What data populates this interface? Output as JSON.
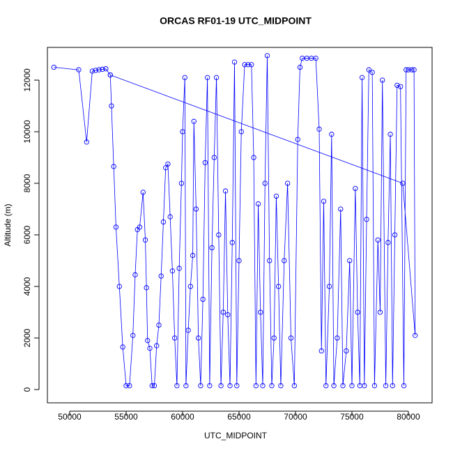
{
  "chart_data": {
    "type": "line",
    "title": "ORCAS RF01-19 UTC_MIDPOINT",
    "xlabel": "UTC_MIDPOINT",
    "ylabel": "Altitude (m)",
    "color": "#0000ff",
    "marker": "circle",
    "grid": false,
    "xlim": [
      48025,
      82100
    ],
    "ylim": [
      -514,
      13270
    ],
    "xticks": [
      50000,
      55000,
      60000,
      65000,
      70000,
      75000,
      80000
    ],
    "yticks": [
      0,
      2000,
      4000,
      6000,
      8000,
      10000,
      12000
    ],
    "x": [
      48600,
      50800,
      51500,
      52000,
      52300,
      52600,
      52900,
      53200,
      53600,
      53700,
      53900,
      54100,
      54400,
      54700,
      55000,
      55300,
      55600,
      55800,
      56000,
      56200,
      56500,
      56700,
      56800,
      56900,
      57100,
      57300,
      57500,
      57700,
      57900,
      58100,
      58300,
      58500,
      58700,
      58900,
      59100,
      59300,
      59500,
      59700,
      59900,
      60000,
      60200,
      60300,
      60500,
      60700,
      60900,
      61000,
      61200,
      61400,
      61600,
      61800,
      62000,
      62200,
      62400,
      62600,
      62800,
      63000,
      63200,
      63400,
      63600,
      63800,
      64000,
      64200,
      64400,
      64600,
      64800,
      65000,
      65200,
      65500,
      65800,
      66100,
      66300,
      66500,
      66700,
      66900,
      67100,
      67300,
      67500,
      67700,
      67900,
      68100,
      68300,
      68500,
      68700,
      69000,
      69300,
      69600,
      69900,
      70200,
      70400,
      70600,
      71000,
      71400,
      71800,
      72100,
      72300,
      72500,
      72700,
      73000,
      73200,
      73400,
      73700,
      74000,
      74200,
      74500,
      74800,
      75000,
      75300,
      75500,
      75700,
      75900,
      76100,
      76300,
      76500,
      76800,
      77000,
      77300,
      77500,
      77700,
      78000,
      78200,
      78400,
      78600,
      78800,
      79000,
      79300,
      79600,
      79800,
      80000,
      80300,
      80500,
      80600,
      79500,
      53600
    ],
    "values": [
      12500,
      12400,
      9600,
      12350,
      12380,
      12400,
      12420,
      12440,
      12200,
      11000,
      8650,
      6300,
      4000,
      1650,
      150,
      150,
      2100,
      4450,
      6200,
      6300,
      7650,
      5800,
      3950,
      1900,
      1600,
      150,
      150,
      1700,
      2500,
      4400,
      6500,
      8600,
      8750,
      6700,
      4600,
      2000,
      150,
      4700,
      8000,
      10000,
      12100,
      150,
      2300,
      4000,
      5200,
      10400,
      7000,
      2000,
      150,
      3500,
      8800,
      12100,
      150,
      5500,
      9000,
      12100,
      6000,
      150,
      3000,
      7700,
      2900,
      150,
      5700,
      12700,
      150,
      5000,
      10000,
      12600,
      12600,
      12600,
      9000,
      150,
      7200,
      3000,
      150,
      8000,
      12950,
      5000,
      150,
      2000,
      7500,
      4000,
      150,
      5000,
      8000,
      2000,
      150,
      9700,
      12500,
      12850,
      12850,
      12850,
      12850,
      10100,
      1500,
      7300,
      150,
      4000,
      9900,
      150,
      2000,
      7000,
      150,
      1500,
      5000,
      150,
      7800,
      3000,
      150,
      12100,
      150,
      6600,
      12400,
      12300,
      150,
      5800,
      3000,
      12000,
      150,
      5700,
      9900,
      150,
      6000,
      11800,
      11750,
      150,
      12400,
      12400,
      12400,
      12400,
      2100,
      8000,
      12200
    ]
  }
}
